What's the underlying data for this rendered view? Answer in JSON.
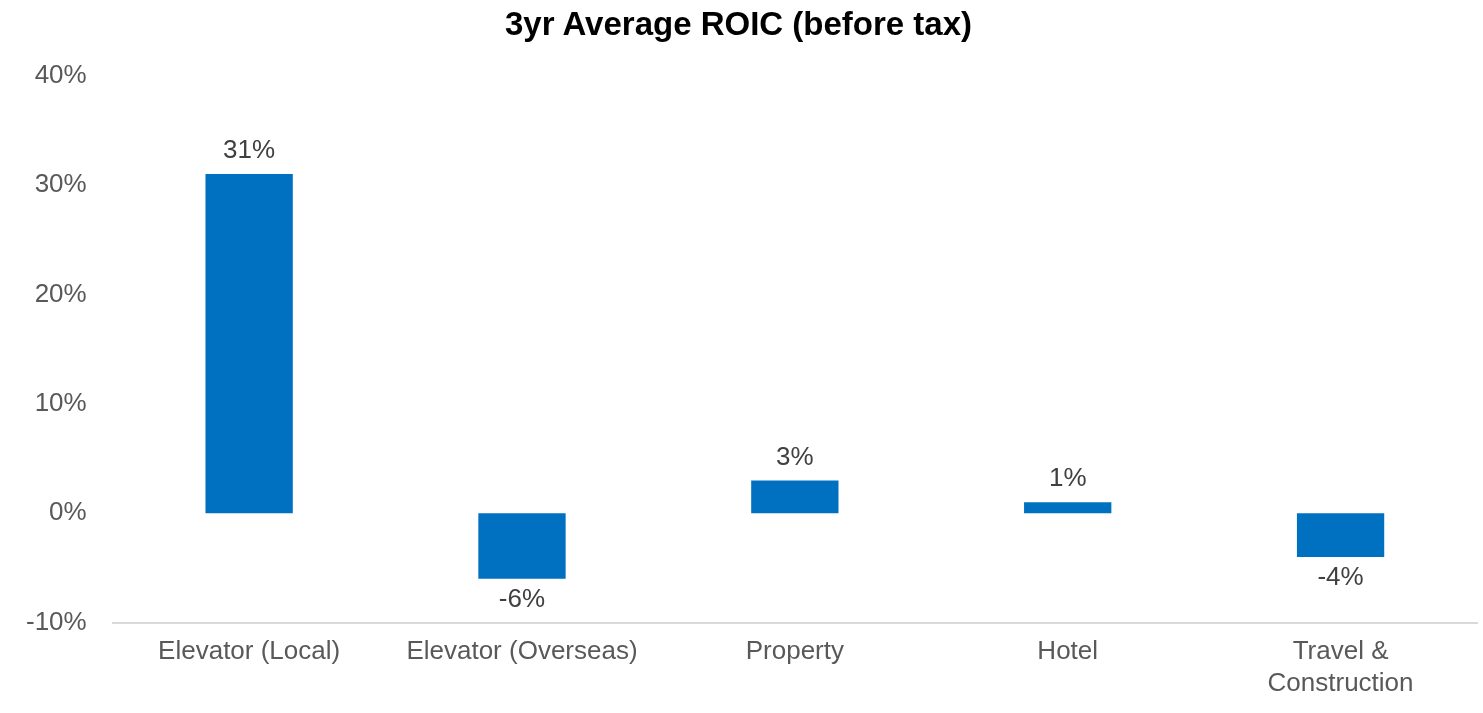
{
  "chart_data": {
    "type": "bar",
    "title": "3yr Average ROIC (before tax)",
    "categories": [
      "Elevator (Local)",
      "Elevator (Overseas)",
      "Property",
      "Hotel",
      "Travel & Construction"
    ],
    "values": [
      31,
      -6,
      3,
      1,
      -4
    ],
    "value_labels": [
      "31%",
      "-6%",
      "3%",
      "1%",
      "-4%"
    ],
    "color": "#0070c0",
    "ylim": [
      -10,
      40
    ],
    "yticks": [
      {
        "value": -10,
        "label": "-10%"
      },
      {
        "value": 0,
        "label": "0%"
      },
      {
        "value": 10,
        "label": "10%"
      },
      {
        "value": 20,
        "label": "20%"
      },
      {
        "value": 30,
        "label": "30%"
      },
      {
        "value": 40,
        "label": "40%"
      }
    ],
    "grid": false,
    "legend": false
  }
}
